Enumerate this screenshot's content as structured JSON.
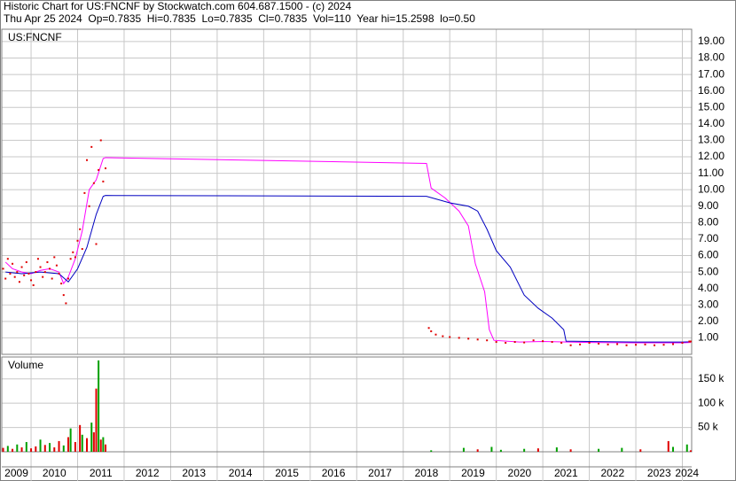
{
  "header": {
    "line1": "Historic Chart for US:FNCNF by Stockwatch.com 604.687.1500 - (c) 2024",
    "line2": "Thu Apr 25 2024  Op=0.7835  Hi=0.7835  Lo=0.7835  Cl=0.7835  Vol=110  Year hi=15.2598  lo=0.50"
  },
  "chart_data": [
    {
      "type": "line",
      "title": "US:FNCNF",
      "grid": true,
      "xlim": [
        2009.37,
        2024.2
      ],
      "xticks": [
        2010,
        2011,
        2012,
        2013,
        2014,
        2015,
        2016,
        2017,
        2018,
        2019,
        2020,
        2021,
        2022,
        2023,
        2024
      ],
      "ylim": [
        0,
        19.75
      ],
      "yticks": [
        {
          "value": 1,
          "label": "1.00"
        },
        {
          "value": 2,
          "label": "2.00"
        },
        {
          "value": 3,
          "label": "3.00"
        },
        {
          "value": 4,
          "label": "4.00"
        },
        {
          "value": 5,
          "label": "5.00"
        },
        {
          "value": 6,
          "label": "6.00"
        },
        {
          "value": 7,
          "label": "7.00"
        },
        {
          "value": 8,
          "label": "8.00"
        },
        {
          "value": 9,
          "label": "9.00"
        },
        {
          "value": 10,
          "label": "10.00"
        },
        {
          "value": 11,
          "label": "11.00"
        },
        {
          "value": 12,
          "label": "12.00"
        },
        {
          "value": 13,
          "label": "13.00"
        },
        {
          "value": 14,
          "label": "14.00"
        },
        {
          "value": 15,
          "label": "15.00"
        },
        {
          "value": 16,
          "label": "16.00"
        },
        {
          "value": 17,
          "label": "17.00"
        },
        {
          "value": 18,
          "label": "18.00"
        },
        {
          "value": 19,
          "label": "19.00"
        }
      ],
      "points": {
        "color": "#e00000",
        "x": [
          2009.4,
          2009.45,
          2009.5,
          2009.55,
          2009.6,
          2009.65,
          2009.7,
          2009.75,
          2009.8,
          2009.85,
          2009.9,
          2009.95,
          2010.0,
          2010.05,
          2010.1,
          2010.15,
          2010.2,
          2010.25,
          2010.3,
          2010.35,
          2010.4,
          2010.45,
          2010.5,
          2010.55,
          2010.6,
          2010.65,
          2010.7,
          2010.75,
          2010.8,
          2010.85,
          2010.9,
          2010.95,
          2011.0,
          2011.05,
          2011.1,
          2011.15,
          2011.2,
          2011.25,
          2011.3,
          2011.35,
          2011.4,
          2011.45,
          2011.5,
          2011.55,
          2011.6,
          2018.55,
          2018.6,
          2018.7,
          2018.85,
          2019.0,
          2019.2,
          2019.4,
          2019.6,
          2019.8,
          2020.0,
          2020.2,
          2020.4,
          2020.6,
          2020.8,
          2021.0,
          2021.2,
          2021.4,
          2021.6,
          2021.8,
          2022.0,
          2022.2,
          2022.4,
          2022.6,
          2022.8,
          2023.0,
          2023.2,
          2023.4,
          2023.6,
          2023.8,
          2024.0,
          2024.15,
          2024.18
        ],
        "values": [
          5.2,
          4.6,
          5.8,
          4.9,
          5.5,
          4.7,
          5.0,
          4.4,
          5.3,
          4.8,
          5.6,
          4.9,
          4.5,
          4.2,
          5.0,
          5.8,
          5.3,
          4.7,
          5.0,
          5.6,
          5.2,
          4.6,
          5.9,
          5.4,
          4.9,
          4.3,
          3.6,
          3.1,
          4.6,
          5.8,
          6.2,
          5.9,
          6.9,
          7.6,
          6.4,
          9.8,
          11.8,
          9.0,
          12.6,
          10.4,
          6.7,
          11.2,
          13.0,
          10.5,
          11.3,
          1.6,
          1.4,
          1.2,
          1.1,
          1.05,
          1.0,
          0.95,
          0.9,
          0.85,
          0.75,
          0.7,
          0.75,
          0.72,
          0.85,
          0.8,
          0.75,
          0.7,
          0.55,
          0.6,
          0.7,
          0.65,
          0.6,
          0.62,
          0.55,
          0.58,
          0.6,
          0.55,
          0.58,
          0.62,
          0.7,
          0.78,
          0.78
        ]
      },
      "series": [
        {
          "color": "#ff00ff",
          "x": [
            2009.45,
            2009.6,
            2009.8,
            2010.0,
            2010.2,
            2010.4,
            2010.6,
            2010.7,
            2010.8,
            2010.95,
            2011.1,
            2011.25,
            2011.4,
            2011.55,
            2011.6,
            2018.5,
            2018.6,
            2018.9,
            2019.2,
            2019.4,
            2019.55,
            2019.75,
            2019.85,
            2019.95,
            2020.5,
            2021.0,
            2022.0,
            2023.0,
            2024.0,
            2024.18
          ],
          "values": [
            5.6,
            5.2,
            5.0,
            4.9,
            5.1,
            5.2,
            5.0,
            4.3,
            4.7,
            5.8,
            7.5,
            10.0,
            10.6,
            11.9,
            11.95,
            11.6,
            10.1,
            9.5,
            8.7,
            7.8,
            5.5,
            3.8,
            1.5,
            0.85,
            0.75,
            0.78,
            0.72,
            0.7,
            0.7,
            0.72
          ]
        },
        {
          "color": "#0000c0",
          "x": [
            2009.45,
            2009.8,
            2010.2,
            2010.6,
            2010.8,
            2011.0,
            2011.2,
            2011.4,
            2011.55,
            2011.6,
            2018.5,
            2019.0,
            2019.4,
            2019.6,
            2019.8,
            2020.0,
            2020.3,
            2020.6,
            2020.9,
            2021.2,
            2021.45,
            2021.5,
            2022.0,
            2023.0,
            2024.0,
            2024.18
          ],
          "values": [
            5.0,
            4.9,
            5.0,
            4.9,
            4.4,
            5.2,
            6.5,
            8.5,
            9.6,
            9.65,
            9.6,
            9.2,
            9.0,
            8.7,
            7.6,
            6.3,
            5.3,
            3.6,
            2.8,
            2.2,
            1.5,
            0.8,
            0.78,
            0.75,
            0.75,
            0.76
          ]
        }
      ]
    },
    {
      "type": "bar",
      "title": "Volume",
      "grid": true,
      "xlim": [
        2009.37,
        2024.2
      ],
      "xticks": [
        2010,
        2011,
        2012,
        2013,
        2014,
        2015,
        2016,
        2017,
        2018,
        2019,
        2020,
        2021,
        2022,
        2023,
        2024
      ],
      "x_labels": [
        "2009",
        "2010",
        "2011",
        "2012",
        "2013",
        "2014",
        "2015",
        "2016",
        "2017",
        "2018",
        "2019",
        "2020",
        "2021",
        "2022",
        "2023",
        "2024"
      ],
      "ylim": [
        0,
        195000
      ],
      "yticks": [
        {
          "value": 50000,
          "label": "50 k"
        },
        {
          "value": 100000,
          "label": "100 k"
        },
        {
          "value": 150000,
          "label": "150 k"
        }
      ],
      "x": [
        2009.4,
        2009.5,
        2009.6,
        2009.7,
        2009.8,
        2009.9,
        2010.0,
        2010.1,
        2010.2,
        2010.3,
        2010.4,
        2010.5,
        2010.6,
        2010.7,
        2010.8,
        2010.85,
        2010.95,
        2011.05,
        2011.1,
        2011.2,
        2011.3,
        2011.35,
        2011.4,
        2011.45,
        2011.5,
        2011.55,
        2011.6,
        2018.6,
        2019.3,
        2019.6,
        2019.9,
        2020.1,
        2020.6,
        2020.9,
        2021.3,
        2021.6,
        2022.2,
        2022.7,
        2023.1,
        2023.7,
        2023.8,
        2024.1,
        2024.18
      ],
      "values": [
        8000,
        12000,
        6000,
        15000,
        9000,
        20000,
        7000,
        11000,
        25000,
        14000,
        18000,
        9000,
        22000,
        13000,
        30000,
        48000,
        20000,
        55000,
        35000,
        28000,
        60000,
        40000,
        130000,
        188000,
        25000,
        30000,
        15000,
        3000,
        8000,
        5000,
        10000,
        4000,
        6000,
        7000,
        9000,
        5000,
        6000,
        8000,
        5000,
        22000,
        10000,
        15000,
        3000
      ],
      "colors": [
        "#e00000",
        "#00a000",
        "#e00000",
        "#00a000",
        "#e00000",
        "#00a000",
        "#e00000",
        "#e00000",
        "#00a000",
        "#e00000",
        "#00a000",
        "#e00000",
        "#e00000",
        "#00a000",
        "#e00000",
        "#00a000",
        "#e00000",
        "#e00000",
        "#00a000",
        "#e00000",
        "#00a000",
        "#e00000",
        "#e00000",
        "#00a000",
        "#e00000",
        "#00a000",
        "#e00000",
        "#00a000",
        "#00a000",
        "#e00000",
        "#00a000",
        "#00a000",
        "#00a000",
        "#e00000",
        "#00a000",
        "#e00000",
        "#00a000",
        "#00a000",
        "#e00000",
        "#e00000",
        "#00a000",
        "#00a000",
        "#e00000"
      ]
    }
  ]
}
